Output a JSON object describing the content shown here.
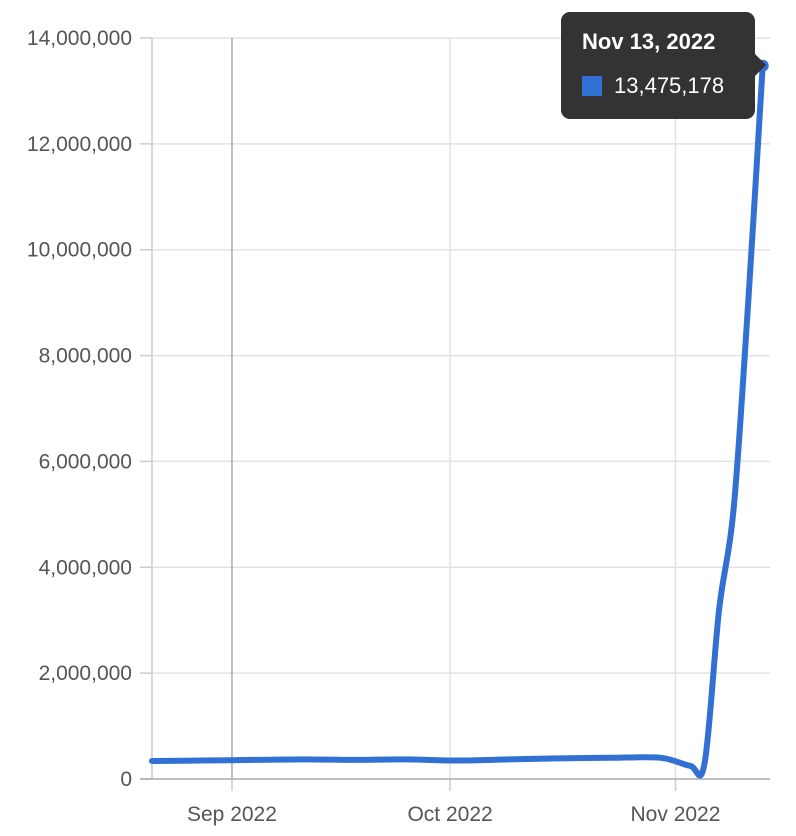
{
  "chart_data": {
    "type": "line",
    "title": "",
    "xlabel": "",
    "ylabel": "",
    "x_ticks": [
      {
        "label": "Sep 2022",
        "date": "2022-09-01"
      },
      {
        "label": "Oct 2022",
        "date": "2022-10-01"
      },
      {
        "label": "Nov 2022",
        "date": "2022-11-01"
      }
    ],
    "y_ticks": [
      {
        "value": 0,
        "label": "0"
      },
      {
        "value": 2000000,
        "label": "2,000,000"
      },
      {
        "value": 4000000,
        "label": "4,000,000"
      },
      {
        "value": 6000000,
        "label": "6,000,000"
      },
      {
        "value": 8000000,
        "label": "8,000,000"
      },
      {
        "value": 10000000,
        "label": "10,000,000"
      },
      {
        "value": 12000000,
        "label": "12,000,000"
      },
      {
        "value": 14000000,
        "label": "14,000,000"
      }
    ],
    "xlim": [
      "2022-08-21",
      "2022-11-14"
    ],
    "ylim": [
      0,
      14000000
    ],
    "grid": true,
    "color": "#3370d4",
    "series": [
      {
        "x": [
          "2022-08-21",
          "2022-08-28",
          "2022-09-04",
          "2022-09-11",
          "2022-09-18",
          "2022-09-25",
          "2022-10-02",
          "2022-10-09",
          "2022-10-16",
          "2022-10-23",
          "2022-10-30",
          "2022-11-03",
          "2022-11-05",
          "2022-11-07",
          "2022-11-09",
          "2022-11-11",
          "2022-11-13"
        ],
        "y": [
          340000,
          350000,
          360000,
          370000,
          360000,
          370000,
          350000,
          370000,
          390000,
          400000,
          400000,
          250000,
          300000,
          3200000,
          5100000,
          9000000,
          13475178
        ]
      }
    ],
    "tooltip": {
      "title": "Nov 13, 2022",
      "value": "13,475,178",
      "date": "2022-11-13",
      "y": 13475178
    }
  }
}
